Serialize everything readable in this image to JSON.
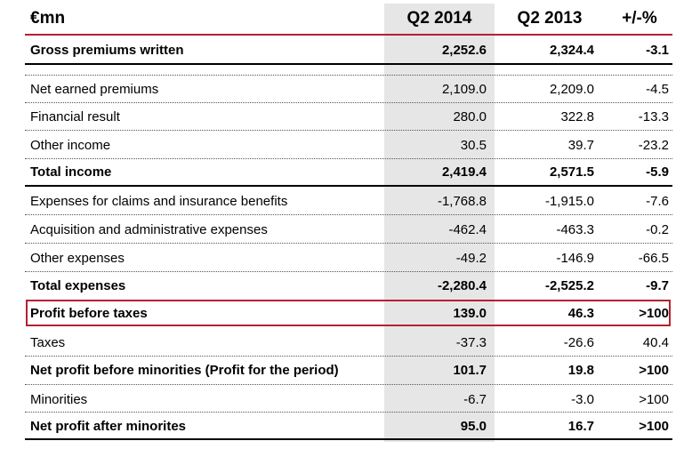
{
  "table": {
    "header": {
      "unit": "€mn",
      "col_q2014": "Q2 2014",
      "col_q2013": "Q2 2013",
      "col_change": "+/-%"
    },
    "rows": [
      {
        "label": "Gross premiums written",
        "q2014": "2,252.6",
        "q2013": "2,324.4",
        "change": "-3.1",
        "bold": true
      },
      {
        "label": "Net earned premiums",
        "q2014": "2,109.0",
        "q2013": "2,209.0",
        "change": "-4.5",
        "bold": false
      },
      {
        "label": "Financial result",
        "q2014": "280.0",
        "q2013": "322.8",
        "change": "-13.3",
        "bold": false
      },
      {
        "label": "Other income",
        "q2014": "30.5",
        "q2013": "39.7",
        "change": "-23.2",
        "bold": false
      },
      {
        "label": "Total income",
        "q2014": "2,419.4",
        "q2013": "2,571.5",
        "change": "-5.9",
        "bold": true
      },
      {
        "label": "Expenses for claims and insurance benefits",
        "q2014": "-1,768.8",
        "q2013": "-1,915.0",
        "change": "-7.6",
        "bold": false
      },
      {
        "label": "Acquisition and administrative expenses",
        "q2014": "-462.4",
        "q2013": "-463.3",
        "change": "-0.2",
        "bold": false
      },
      {
        "label": "Other expenses",
        "q2014": "-49.2",
        "q2013": "-146.9",
        "change": "-66.5",
        "bold": false
      },
      {
        "label": "Total expenses",
        "q2014": "-2,280.4",
        "q2013": "-2,525.2",
        "change": "-9.7",
        "bold": true
      },
      {
        "label": "Profit before taxes",
        "q2014": "139.0",
        "q2013": "46.3",
        "change": ">100",
        "bold": true
      },
      {
        "label": "Taxes",
        "q2014": "-37.3",
        "q2013": "-26.6",
        "change": "40.4",
        "bold": false
      },
      {
        "label": "Net profit before minorities (Profit for the period)",
        "q2014": "101.7",
        "q2013": "19.8",
        "change": ">100",
        "bold": true
      },
      {
        "label": "Minorities",
        "q2014": "-6.7",
        "q2013": "-3.0",
        "change": ">100",
        "bold": false
      },
      {
        "label": "Net profit after minorites",
        "q2014": "95.0",
        "q2013": "16.7",
        "change": ">100",
        "bold": true
      }
    ]
  },
  "colors": {
    "accent_red": "#b52130",
    "column_shade": "#e6e6e6",
    "text": "#000000"
  }
}
